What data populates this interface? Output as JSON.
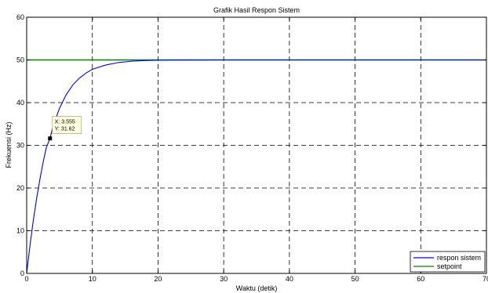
{
  "chart_data": {
    "type": "line",
    "title": "Grafik Hasil Respon Sistem",
    "xlabel": "Waktu (detik)",
    "ylabel": "Frekuensi (Hz)",
    "xlim": [
      0,
      70
    ],
    "ylim": [
      0,
      60
    ],
    "xticks": [
      "0",
      "10",
      "20",
      "30",
      "40",
      "50",
      "60",
      "70"
    ],
    "yticks": [
      "0",
      "10",
      "20",
      "30",
      "40",
      "50",
      "60"
    ],
    "grid": true,
    "grid_style": "dashed",
    "legend_position": "bottom-right",
    "series": [
      {
        "name": "respon sistem",
        "color": "#0000ff",
        "x": [
          0,
          0.5,
          1,
          1.5,
          2,
          2.5,
          3,
          3.555,
          4,
          5,
          6,
          7,
          8,
          9,
          10,
          12,
          14,
          16,
          18,
          20,
          25,
          30,
          40,
          50,
          60,
          70
        ],
        "y": [
          0,
          6.5,
          12.3,
          17.4,
          21.9,
          26.0,
          29.5,
          31.62,
          34.4,
          38.7,
          41.8,
          44.1,
          45.7,
          46.9,
          47.8,
          48.8,
          49.4,
          49.7,
          49.85,
          49.93,
          49.98,
          50,
          50,
          50,
          50,
          50
        ]
      },
      {
        "name": "setpoint",
        "color": "#008000",
        "x": [
          0,
          70
        ],
        "y": [
          50,
          50
        ]
      }
    ],
    "datatip": {
      "x_text": "X: 3.555",
      "y_text": "Y: 31.62",
      "x": 3.555,
      "y": 31.62
    }
  }
}
